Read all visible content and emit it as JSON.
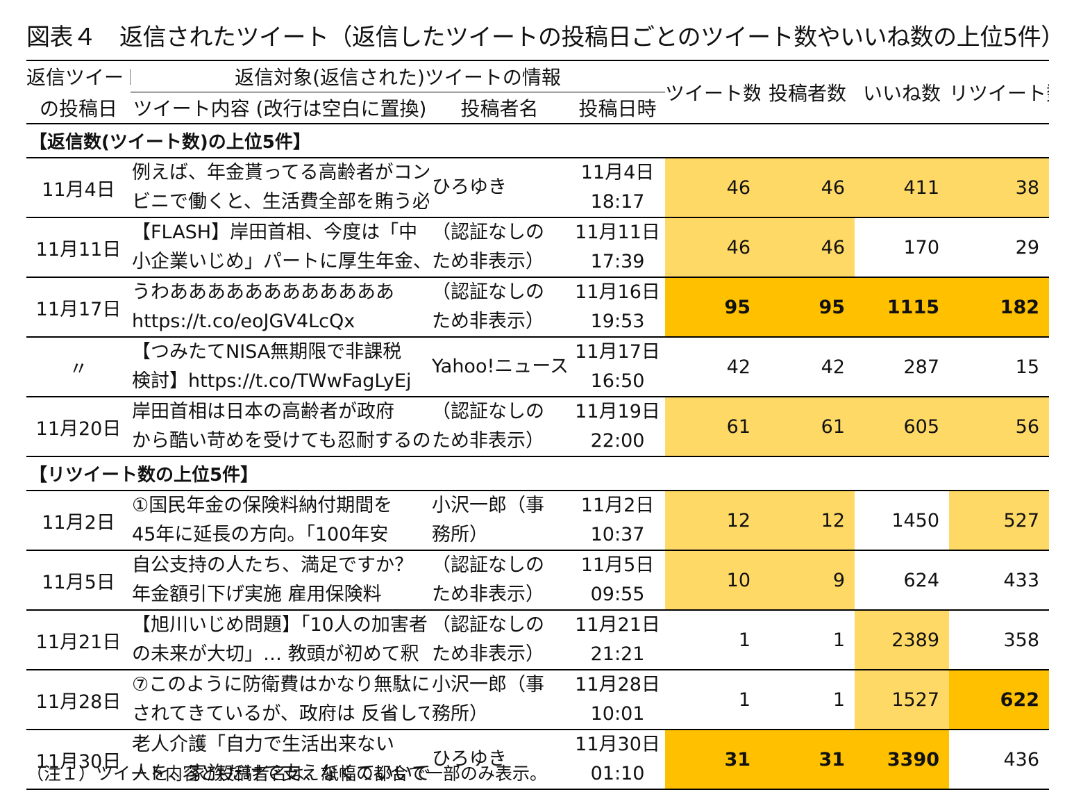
{
  "title": "図表４　返信されたツイート（返信したツイートの投稿日ごとのツイート数やいいね数の上位5件）",
  "header": {
    "col_reply_date_line1": "返信ツイート",
    "col_reply_date_line2": "の投稿日",
    "group_target": "返信対象(返信された)ツイートの情報",
    "col_content": "ツイート内容 (改行は空白に置換)",
    "col_author": "投稿者名",
    "col_posted": "投稿日時",
    "col_tweets": "ツイート数",
    "col_posters": "投稿者数",
    "col_likes": "いいね数",
    "col_retweets": "リツイート数"
  },
  "sections": [
    {
      "label": "【返信数(ツイート数)の上位5件】",
      "rows": [
        {
          "date": "11月4日",
          "content1": "例えば、年金貰ってる高齢者がコン",
          "content2": "ビニで働くと、生活費全部を賄う必",
          "author1": "ひろゆき",
          "author2": "",
          "when1": "11月4日",
          "when2": "18:17",
          "tweets": "46",
          "posters": "46",
          "likes": "411",
          "retweets": "38",
          "hl": [
            "hl1",
            "hl1",
            "hl1",
            "hl1"
          ]
        },
        {
          "date": "11月11日",
          "content1": "【FLASH】岸田首相、今度は「中",
          "content2": "小企業いじめ」パートに厚生年金、",
          "author1": "（認証なしの",
          "author2": "ため非表示）",
          "when1": "11月11日",
          "when2": "17:39",
          "tweets": "46",
          "posters": "46",
          "likes": "170",
          "retweets": "29",
          "hl": [
            "hl1",
            "hl1",
            "",
            ""
          ]
        },
        {
          "date": "11月17日",
          "content1": "うわああああああああああああ",
          "content2": "https://t.co/eoJGV4LcQx",
          "author1": "（認証なしの",
          "author2": "ため非表示）",
          "when1": "11月16日",
          "when2": "19:53",
          "tweets": "95",
          "posters": "95",
          "likes": "1115",
          "retweets": "182",
          "hl": [
            "hl2",
            "hl2",
            "hl2",
            "hl2"
          ]
        },
        {
          "date": "〃",
          "content1": "【つみたてNISA無期限で非課税",
          "content2": "検討】https://t.co/TWwFagLyEj",
          "author1": "Yahoo!ニュース",
          "author2": "",
          "when1": "11月17日",
          "when2": "16:50",
          "tweets": "42",
          "posters": "42",
          "likes": "287",
          "retweets": "15",
          "hl": [
            "",
            "",
            "",
            ""
          ]
        },
        {
          "date": "11月20日",
          "content1": "岸田首相は日本の高齢者が政府",
          "content2": "から酷い苛めを受けても忍耐するの",
          "author1": "（認証なしの",
          "author2": "ため非表示）",
          "when1": "11月19日",
          "when2": "22:00",
          "tweets": "61",
          "posters": "61",
          "likes": "605",
          "retweets": "56",
          "hl": [
            "hl1",
            "hl1",
            "hl1",
            "hl1"
          ]
        }
      ]
    },
    {
      "label": "【リツイート数の上位5件】",
      "rows": [
        {
          "date": "11月2日",
          "content1": "①国民年金の保険料納付期間を",
          "content2": "45年に延長の方向。「100年安",
          "author1": "小沢一郎（事",
          "author2": "務所）",
          "when1": "11月2日",
          "when2": "10:37",
          "tweets": "12",
          "posters": "12",
          "likes": "1450",
          "retweets": "527",
          "hl": [
            "hl1",
            "hl1",
            "",
            "hl1"
          ]
        },
        {
          "date": "11月5日",
          "content1": "自公支持の人たち、満足ですか？",
          "content2": "年金額引下げ実施 雇用保険料",
          "author1": "（認証なしの",
          "author2": "ため非表示）",
          "when1": "11月5日",
          "when2": "09:55",
          "tweets": "10",
          "posters": "9",
          "likes": "624",
          "retweets": "433",
          "hl": [
            "hl1",
            "hl1",
            "",
            ""
          ]
        },
        {
          "date": "11月21日",
          "content1": "【旭川いじめ問題】「10人の加害者",
          "content2": "の未来が大切」… 教頭が初めて釈",
          "author1": "（認証なしの",
          "author2": "ため非表示）",
          "when1": "11月21日",
          "when2": "21:21",
          "tweets": "1",
          "posters": "1",
          "likes": "2389",
          "retweets": "358",
          "hl": [
            "",
            "",
            "hl1",
            ""
          ]
        },
        {
          "date": "11月28日",
          "content1": "⑦このように防衛費はかなり無駄に",
          "content2": "されてきているが、政府は 反省して",
          "author1": "小沢一郎（事",
          "author2": "務所）",
          "when1": "11月28日",
          "when2": "10:01",
          "tweets": "1",
          "posters": "1",
          "likes": "1527",
          "retweets": "622",
          "hl": [
            "",
            "",
            "hl1",
            "hl2"
          ]
        },
        {
          "date": "11月30日",
          "content1": "老人介護「自力で生活出来ない",
          "content2": "人を、家族だけで支えなくていいで",
          "author1": "ひろゆき",
          "author2": "",
          "when1": "11月30日",
          "when2": "01:10",
          "tweets": "31",
          "posters": "31",
          "likes": "3390",
          "retweets": "436",
          "hl": [
            "hl2",
            "hl2",
            "hl2",
            ""
          ]
        }
      ]
    }
  ],
  "note": "（注１）ツイート内容と投稿者名は、紙幅の都合で一部のみ表示。",
  "colors": {
    "highlight_light": "#ffd966",
    "highlight_strong": "#ffc000"
  }
}
